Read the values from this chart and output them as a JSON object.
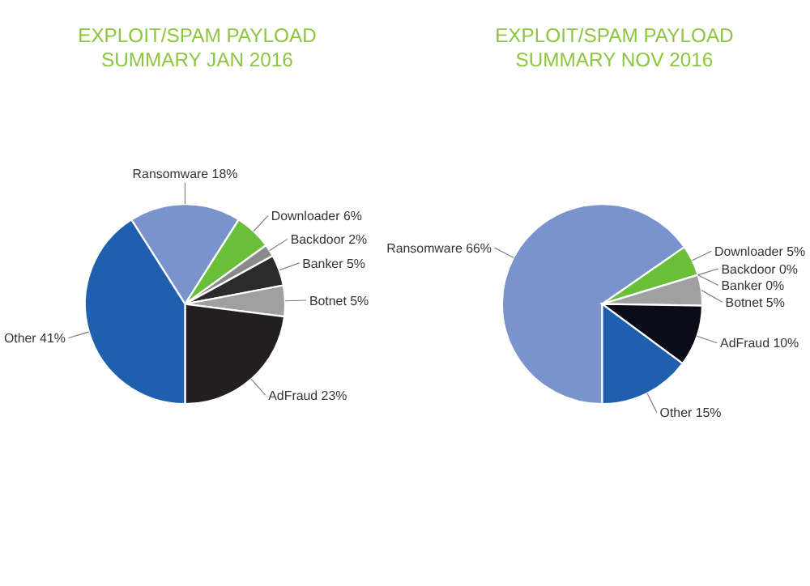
{
  "chart_data": [
    {
      "type": "pie",
      "title": "EXPLOIT/SPAM PAYLOAD\nSUMMARY JAN 2016",
      "categories": [
        "Ransomware",
        "Downloader",
        "Backdoor",
        "Banker",
        "Botnet",
        "AdFraud",
        "Other"
      ],
      "values": [
        18,
        6,
        2,
        5,
        5,
        23,
        41
      ],
      "value_labels": [
        "18%",
        "6%",
        "2%",
        "5%",
        "5%",
        "23%",
        "41%"
      ],
      "colors": [
        "#7b93cc",
        "#6abf3a",
        "#8a8a8a",
        "#2b2b2b",
        "#a0a0a0",
        "#231f20",
        "#1f5fae"
      ]
    },
    {
      "type": "pie",
      "title": "EXPLOIT/SPAM PAYLOAD\nSUMMARY NOV 2016",
      "categories": [
        "Ransomware",
        "Downloader",
        "Backdoor",
        "Banker",
        "Botnet",
        "AdFraud",
        "Other"
      ],
      "values": [
        66,
        5,
        0,
        0,
        5,
        10,
        15
      ],
      "value_labels": [
        "66%",
        "5%",
        "0%",
        "0%",
        "5%",
        "10%",
        "15%"
      ],
      "colors": [
        "#7b93cc",
        "#6abf3a",
        "#8a8a8a",
        "#2b2b2b",
        "#a0a0a0",
        "#0b0b1a",
        "#1f5fae"
      ]
    }
  ]
}
